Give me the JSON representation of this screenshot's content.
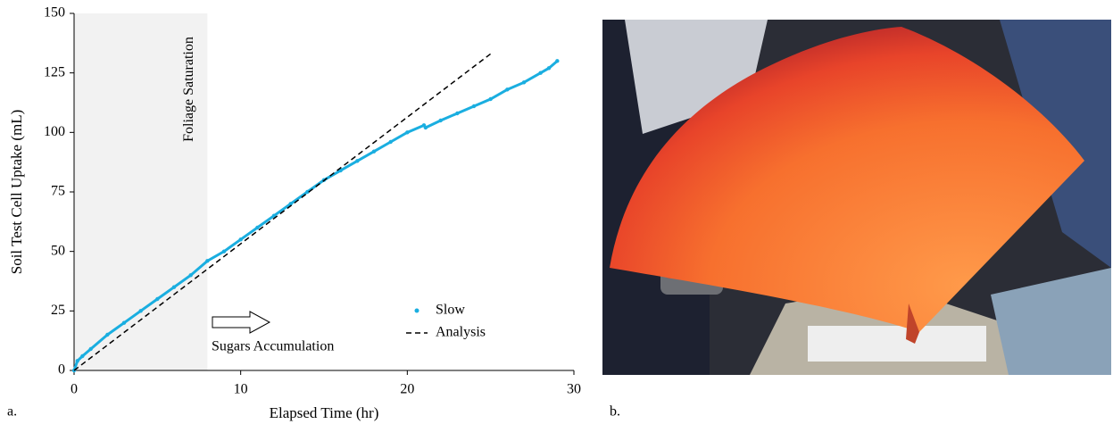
{
  "panel_labels": [
    "a.",
    "b."
  ],
  "chart_data": {
    "type": "scatter",
    "x_label": "Elapsed Time (hr)",
    "y_label": "Soil Test Cell Uptake (mL)",
    "xlim": [
      0,
      30
    ],
    "xticks": [
      0,
      10,
      20,
      30
    ],
    "ylim": [
      0,
      150
    ],
    "yticks": [
      0,
      25,
      50,
      75,
      100,
      125,
      150
    ],
    "grid": false,
    "legend": "lower right",
    "shaded_region": {
      "xlim": [
        0,
        8
      ],
      "label": "Foliage Saturation"
    },
    "annotation": "Sugars Accumulation",
    "series": [
      {
        "name": "Slow",
        "color": "#1aaee0",
        "style": "dots",
        "x": [
          0,
          0.2,
          0.5,
          1,
          2,
          3,
          4,
          5,
          6,
          7,
          8,
          9,
          10,
          11,
          12,
          13,
          14,
          15,
          16,
          17,
          18,
          19,
          20,
          21,
          21.05,
          21.1,
          22,
          23,
          24,
          25,
          26,
          27,
          28,
          28.5,
          29
        ],
        "values": [
          0,
          4,
          6,
          9,
          15,
          20,
          25,
          30,
          35,
          40,
          46,
          50,
          55,
          60,
          65,
          70,
          75,
          80,
          84,
          88,
          92,
          96,
          100,
          103,
          null,
          102,
          105,
          108,
          111,
          114,
          118,
          121,
          125,
          127,
          130
        ]
      },
      {
        "name": "Analysis",
        "color": "#000000",
        "style": "dashed",
        "x": [
          0,
          25
        ],
        "values": [
          0,
          133
        ]
      }
    ]
  }
}
